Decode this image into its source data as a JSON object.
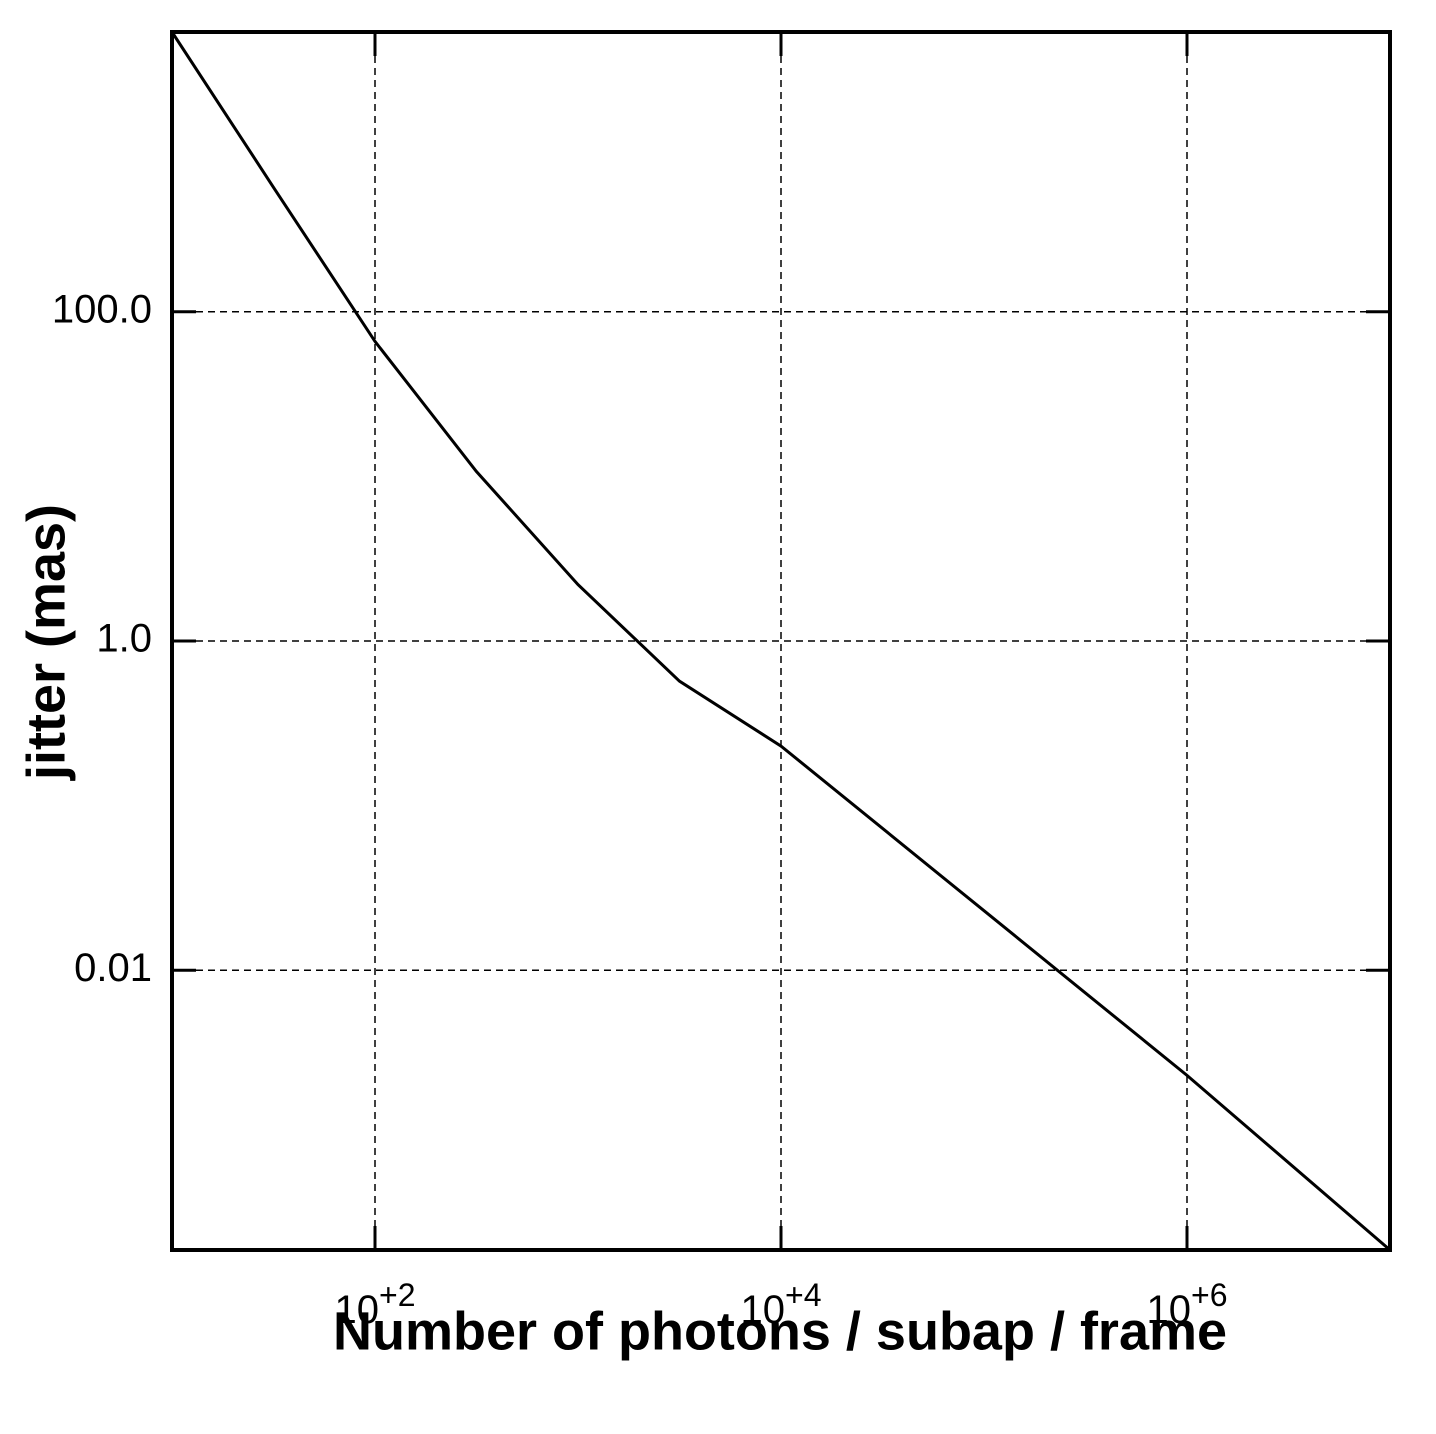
{
  "chart_data": {
    "type": "line",
    "x_label": "Number of photons / subap / frame",
    "y_label": "jitter (mas)",
    "x_scale": "log",
    "y_scale": "log",
    "grid": true,
    "xlim": [
      10,
      10000000
    ],
    "ylim": [
      0.0002,
      5000
    ],
    "xticks": [
      {
        "value": 100,
        "label": "10+2"
      },
      {
        "value": 10000,
        "label": "10+4"
      },
      {
        "value": 1000000,
        "label": "10+6"
      }
    ],
    "yticks": [
      {
        "value": 100,
        "label": "100.0"
      },
      {
        "value": 1,
        "label": "1.0"
      },
      0.01
    ],
    "x": [
      10,
      31.6,
      100,
      316,
      1000,
      3162,
      10000,
      100000,
      1000000,
      10000000
    ],
    "series": [
      {
        "color": "#000000",
        "values": [
          5000,
          570,
          66,
          10.7,
          2.2,
          0.57,
          0.23,
          0.023,
          0.0023,
          0.0002
        ]
      }
    ]
  }
}
